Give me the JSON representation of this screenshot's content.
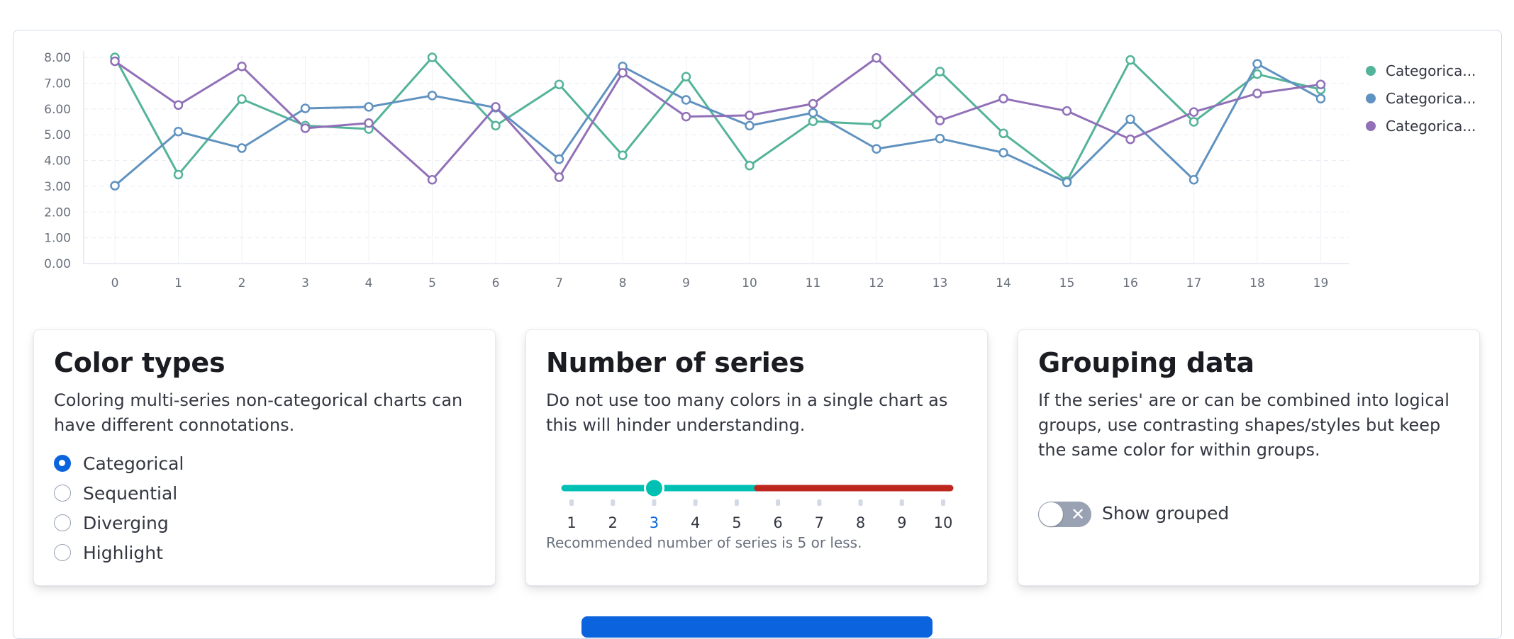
{
  "chart_data": {
    "type": "line",
    "x": [
      0,
      1,
      2,
      3,
      4,
      5,
      6,
      7,
      8,
      9,
      10,
      11,
      12,
      13,
      14,
      15,
      16,
      17,
      18,
      19
    ],
    "ylim": [
      0,
      8
    ],
    "y_ticks": [
      "0.00",
      "1.00",
      "2.00",
      "3.00",
      "4.00",
      "5.00",
      "6.00",
      "7.00",
      "8.00"
    ],
    "x_ticks": [
      "0",
      "1",
      "2",
      "3",
      "4",
      "5",
      "6",
      "7",
      "8",
      "9",
      "10",
      "11",
      "12",
      "13",
      "14",
      "15",
      "16",
      "17",
      "18",
      "19"
    ],
    "grid": "on",
    "legend_position": "right",
    "series": [
      {
        "name": "Categorica...",
        "color": "#54b399",
        "values": [
          8.0,
          3.45,
          6.38,
          5.35,
          5.22,
          8.0,
          5.35,
          6.95,
          4.2,
          7.25,
          3.8,
          5.52,
          5.4,
          7.45,
          5.05,
          3.2,
          7.9,
          5.5,
          7.35,
          6.75
        ]
      },
      {
        "name": "Categorica...",
        "color": "#6092c0",
        "values": [
          3.02,
          5.12,
          4.48,
          6.02,
          6.08,
          6.52,
          6.05,
          4.05,
          7.65,
          6.35,
          5.35,
          5.85,
          4.45,
          4.85,
          4.3,
          3.15,
          5.6,
          3.25,
          7.75,
          6.4
        ]
      },
      {
        "name": "Categorica...",
        "color": "#9170b8",
        "values": [
          7.85,
          6.15,
          7.65,
          5.25,
          5.45,
          3.25,
          6.08,
          3.35,
          7.4,
          5.7,
          5.75,
          6.2,
          7.98,
          5.55,
          6.4,
          5.92,
          4.82,
          5.88,
          6.6,
          6.95
        ]
      }
    ]
  },
  "cards": {
    "color_types": {
      "title": "Color types",
      "desc": "Coloring multi-series non-categorical charts can have different connotations.",
      "options": [
        "Categorical",
        "Sequential",
        "Diverging",
        "Highlight"
      ],
      "selected": "Categorical"
    },
    "number_of_series": {
      "title": "Number of series",
      "desc": "Do not use too many colors in a single chart as this will hinder understanding.",
      "slider_ticks": [
        "1",
        "2",
        "3",
        "4",
        "5",
        "6",
        "7",
        "8",
        "9",
        "10"
      ],
      "slider_value": 3,
      "recommended_max": 5,
      "note": "Recommended number of series is 5 or less.",
      "colors": {
        "ok": "#00bfb3",
        "bad": "#bd271e",
        "active_label": "#0b64dd"
      }
    },
    "grouping_data": {
      "title": "Grouping data",
      "desc": "If the series' are or can be combined into logical groups, use contrasting shapes/styles but keep the same color for within groups.",
      "toggle_label": "Show grouped",
      "toggle_on": false,
      "toggle_icon": "cross-icon"
    }
  }
}
